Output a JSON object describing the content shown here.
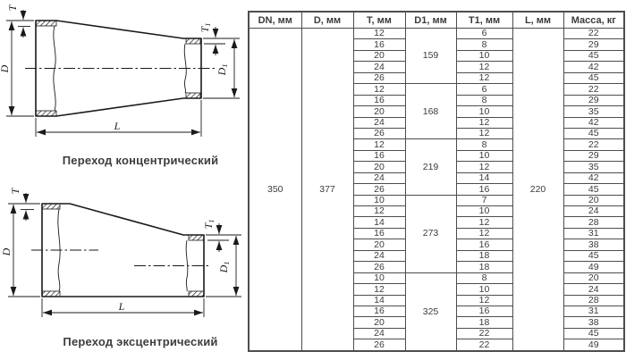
{
  "drawings": {
    "concentric": {
      "caption": "Переход концентрический"
    },
    "eccentric": {
      "caption": "Переход эксцентрический"
    },
    "dim_labels": {
      "d": "D",
      "d1_main": "D",
      "d1_sub": "1",
      "t": "T",
      "t1_main": "T",
      "t1_sub": "1",
      "l": "L"
    }
  },
  "table": {
    "headers": [
      "DN, мм",
      "D, мм",
      "T, мм",
      "D1, мм",
      "T1, мм",
      "L, мм",
      "Масса, кг"
    ],
    "dn": "350",
    "d": "377",
    "l": "220",
    "groups": [
      {
        "d1": "159",
        "rows": [
          {
            "t": "12",
            "t1": "6",
            "mass": "22"
          },
          {
            "t": "16",
            "t1": "8",
            "mass": "29"
          },
          {
            "t": "20",
            "t1": "10",
            "mass": "45"
          },
          {
            "t": "24",
            "t1": "12",
            "mass": "42"
          },
          {
            "t": "26",
            "t1": "12",
            "mass": "45"
          }
        ]
      },
      {
        "d1": "168",
        "rows": [
          {
            "t": "12",
            "t1": "6",
            "mass": "22"
          },
          {
            "t": "16",
            "t1": "8",
            "mass": "29"
          },
          {
            "t": "20",
            "t1": "10",
            "mass": "35"
          },
          {
            "t": "24",
            "t1": "12",
            "mass": "42"
          },
          {
            "t": "26",
            "t1": "12",
            "mass": "45"
          }
        ]
      },
      {
        "d1": "219",
        "rows": [
          {
            "t": "12",
            "t1": "8",
            "mass": "22"
          },
          {
            "t": "16",
            "t1": "10",
            "mass": "29"
          },
          {
            "t": "20",
            "t1": "12",
            "mass": "35"
          },
          {
            "t": "24",
            "t1": "14",
            "mass": "42"
          },
          {
            "t": "26",
            "t1": "16",
            "mass": "45"
          }
        ]
      },
      {
        "d1": "273",
        "rows": [
          {
            "t": "10",
            "t1": "7",
            "mass": "20"
          },
          {
            "t": "12",
            "t1": "10",
            "mass": "24"
          },
          {
            "t": "14",
            "t1": "12",
            "mass": "28"
          },
          {
            "t": "16",
            "t1": "12",
            "mass": "31"
          },
          {
            "t": "20",
            "t1": "16",
            "mass": "38"
          },
          {
            "t": "24",
            "t1": "18",
            "mass": "45"
          },
          {
            "t": "26",
            "t1": "18",
            "mass": "49"
          }
        ]
      },
      {
        "d1": "325",
        "rows": [
          {
            "t": "10",
            "t1": "8",
            "mass": "20"
          },
          {
            "t": "12",
            "t1": "10",
            "mass": "24"
          },
          {
            "t": "14",
            "t1": "12",
            "mass": "28"
          },
          {
            "t": "16",
            "t1": "16",
            "mass": "31"
          },
          {
            "t": "20",
            "t1": "18",
            "mass": "38"
          },
          {
            "t": "24",
            "t1": "22",
            "mass": "45"
          },
          {
            "t": "26",
            "t1": "22",
            "mass": "49"
          }
        ]
      }
    ]
  }
}
